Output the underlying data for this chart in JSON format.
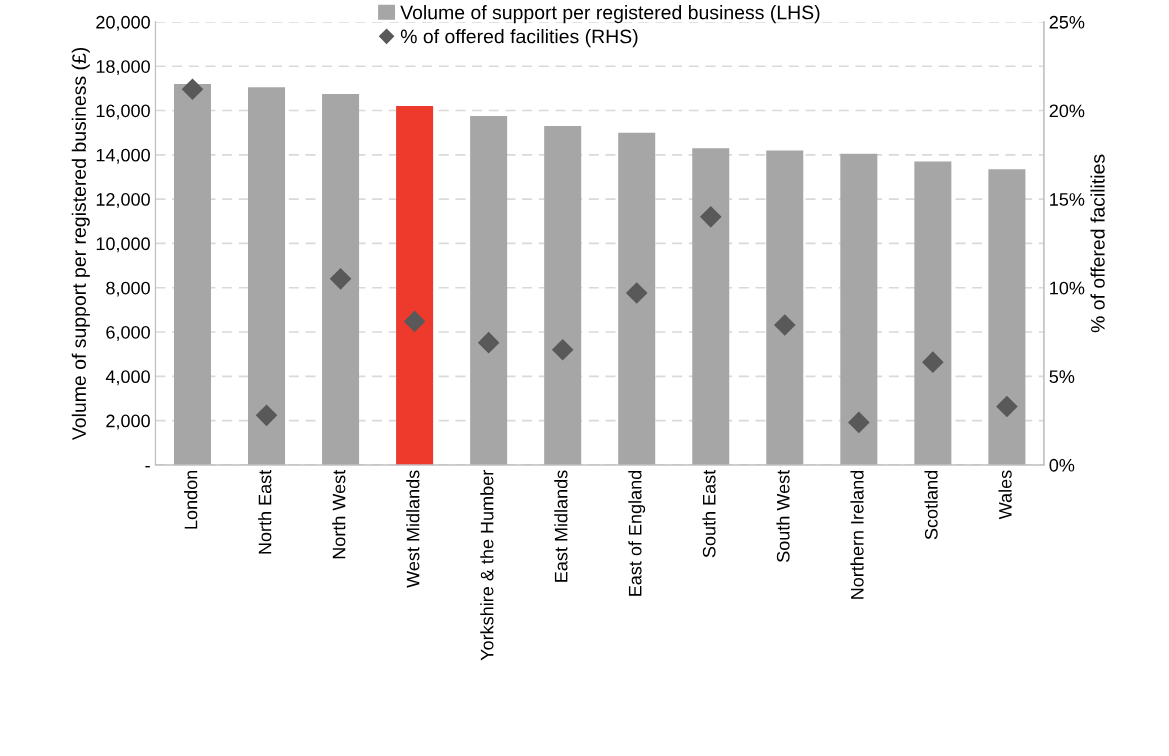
{
  "chart_data": {
    "type": "bar",
    "ylabel": "Volume of support per registered business (£)",
    "y2label": "% of offered facilities",
    "categories": [
      "London",
      "North East",
      "North West",
      "West Midlands",
      "Yorkshire & the Humber",
      "East Midlands",
      "East of England",
      "South East",
      "South West",
      "Northern Ireland",
      "Scotland",
      "Wales"
    ],
    "series": [
      {
        "name": "Volume of support per registered business (LHS)",
        "color": "#a6a6a6",
        "colors": [
          "#a6a6a6",
          "#a6a6a6",
          "#a6a6a6",
          "#ee3a2c",
          "#a6a6a6",
          "#a6a6a6",
          "#a6a6a6",
          "#a6a6a6",
          "#a6a6a6",
          "#a6a6a6",
          "#a6a6a6",
          "#a6a6a6"
        ],
        "values": [
          17200,
          17050,
          16750,
          16200,
          15750,
          15300,
          15000,
          14300,
          14200,
          14050,
          13700,
          13350
        ]
      },
      {
        "name": "% of offered facilities (RHS)",
        "type": "scatter",
        "axis": "y2",
        "color": "#595959",
        "marker": "diamond",
        "values": [
          21.2,
          2.8,
          10.5,
          8.1,
          6.9,
          6.5,
          9.7,
          14.0,
          7.9,
          2.4,
          5.8,
          3.3
        ]
      }
    ],
    "ylim": [
      0,
      20000
    ],
    "yticks": [
      {
        "value": 0,
        "label": "-"
      },
      {
        "value": 2000,
        "label": "2,000"
      },
      {
        "value": 4000,
        "label": "4,000"
      },
      {
        "value": 6000,
        "label": "6,000"
      },
      {
        "value": 8000,
        "label": "8,000"
      },
      {
        "value": 10000,
        "label": "10,000"
      },
      {
        "value": 12000,
        "label": "12,000"
      },
      {
        "value": 14000,
        "label": "14,000"
      },
      {
        "value": 16000,
        "label": "16,000"
      },
      {
        "value": 18000,
        "label": "18,000"
      },
      {
        "value": 20000,
        "label": "20,000"
      }
    ],
    "y2lim": [
      0,
      25
    ],
    "y2ticks": [
      {
        "value": 0,
        "label": "0%"
      },
      {
        "value": 5,
        "label": "5%"
      },
      {
        "value": 10,
        "label": "10%"
      },
      {
        "value": 15,
        "label": "15%"
      },
      {
        "value": 20,
        "label": "20%"
      },
      {
        "value": 25,
        "label": "25%"
      }
    ],
    "grid": "y",
    "legend": "top"
  }
}
